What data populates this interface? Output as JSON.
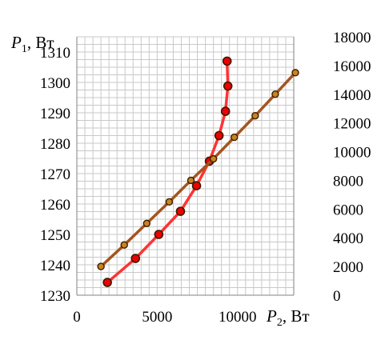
{
  "chart_data": {
    "type": "line",
    "title": "",
    "x_axis": {
      "label_symbol": "P",
      "label_subscript": "2",
      "label_unit": ", Вт",
      "range": [
        0,
        13500
      ],
      "ticks": [
        0,
        5000,
        10000
      ],
      "tick_labels": [
        "0",
        "5000",
        "10000"
      ]
    },
    "y_axis_left": {
      "label_symbol": "P",
      "label_subscript": "1",
      "label_unit": ", Вт",
      "range": [
        1230,
        1315
      ],
      "ticks": [
        1230,
        1240,
        1250,
        1260,
        1270,
        1280,
        1290,
        1300,
        1310
      ],
      "tick_labels": [
        "1230",
        "1240",
        "1250",
        "1260",
        "1270",
        "1280",
        "1290",
        "1300",
        "1310"
      ]
    },
    "y_axis_right": {
      "range": [
        0,
        18000
      ],
      "ticks": [
        0,
        2000,
        4000,
        6000,
        8000,
        10000,
        12000,
        14000,
        16000,
        18000
      ],
      "tick_labels": [
        "0",
        "2000",
        "4000",
        "6000",
        "8000",
        "10000",
        "12000",
        "14000",
        "16000",
        "18000"
      ]
    },
    "grid": true,
    "series": [
      {
        "axis": "left",
        "color": "#ff3333",
        "marker_color": "#ee0000",
        "points": [
          [
            1900,
            1234.2
          ],
          [
            3650,
            1242.1
          ],
          [
            5100,
            1250.0
          ],
          [
            6450,
            1257.6
          ],
          [
            7450,
            1266.0
          ],
          [
            8250,
            1274.1
          ],
          [
            8850,
            1282.5
          ],
          [
            9250,
            1290.5
          ],
          [
            9400,
            1298.8
          ],
          [
            9350,
            1307.0
          ]
        ]
      },
      {
        "axis": "right",
        "color": "#a5541f",
        "marker_color": "#c8841d",
        "points": [
          [
            1500,
            2000
          ],
          [
            2950,
            3500
          ],
          [
            4350,
            5000
          ],
          [
            5750,
            6500
          ],
          [
            7100,
            8000
          ],
          [
            8500,
            9500
          ],
          [
            9800,
            11000
          ],
          [
            11100,
            12500
          ],
          [
            12350,
            14000
          ],
          [
            13600,
            15500
          ]
        ]
      }
    ]
  }
}
